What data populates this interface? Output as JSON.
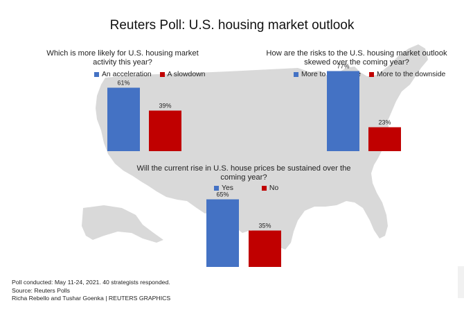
{
  "title": "Reuters Poll: U.S. housing market outlook",
  "colors": {
    "blue": "#4472C4",
    "red": "#C00000",
    "map": "#d9d9d9"
  },
  "chart_data": [
    {
      "type": "bar",
      "title": "Which is more likely for U.S. housing market activity this year?",
      "categories": [
        "An acceleration",
        "A slowdown"
      ],
      "values": [
        61,
        39
      ],
      "value_labels": [
        "61%",
        "39%"
      ],
      "colors": [
        "#4472C4",
        "#C00000"
      ],
      "ylim": [
        0,
        100
      ],
      "legend": "top"
    },
    {
      "type": "bar",
      "title": "How are the risks to the U.S. housing market outlook skewed over the coming year?",
      "categories": [
        "More to the upside",
        "More to the downside"
      ],
      "values": [
        77,
        23
      ],
      "value_labels": [
        "77%",
        "23%"
      ],
      "colors": [
        "#4472C4",
        "#C00000"
      ],
      "ylim": [
        0,
        100
      ],
      "legend": "top"
    },
    {
      "type": "bar",
      "title": "Will the current rise in U.S. house prices be sustained over the coming year?",
      "categories": [
        "Yes",
        "No"
      ],
      "values": [
        65,
        35
      ],
      "value_labels": [
        "65%",
        "35%"
      ],
      "colors": [
        "#4472C4",
        "#C00000"
      ],
      "ylim": [
        0,
        100
      ],
      "legend": "top"
    }
  ],
  "footer": {
    "line1": "Poll conducted: May 11-24, 2021. 40 strategists responded.",
    "line2": "Source: Reuters Polls",
    "line3": "Richa Rebello and Tushar Goenka | REUTERS GRAPHICS"
  }
}
